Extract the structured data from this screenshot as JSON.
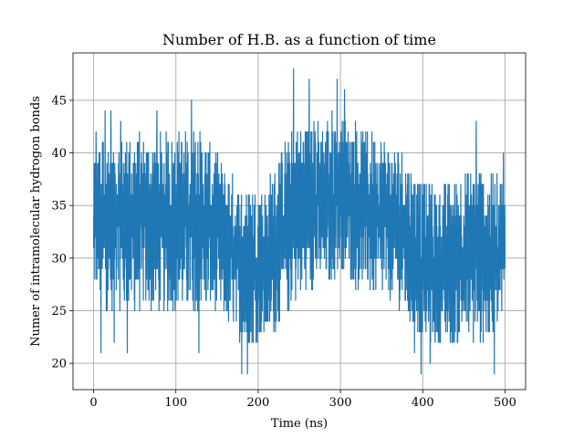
{
  "chart_data": {
    "type": "line",
    "title": "Number of H.B. as a function of time",
    "xlabel": "Time (ns)",
    "ylabel": "Numer of intramolecular hydrogon bonds",
    "xlim": [
      -25,
      525
    ],
    "ylim": [
      17.5,
      49.5
    ],
    "xticks": [
      0,
      100,
      200,
      300,
      400,
      500
    ],
    "yticks": [
      20,
      25,
      30,
      35,
      40,
      45
    ],
    "grid": true,
    "color": "#1f77b4",
    "series": [
      {
        "x_range": [
          0,
          500
        ],
        "min": 19,
        "max": 48,
        "band_low": [
          [
            0,
            27
          ],
          [
            10,
            25
          ],
          [
            20,
            25
          ],
          [
            30,
            25
          ],
          [
            40,
            25
          ],
          [
            50,
            25
          ],
          [
            60,
            25
          ],
          [
            70,
            25
          ],
          [
            80,
            25
          ],
          [
            90,
            25
          ],
          [
            100,
            25
          ],
          [
            110,
            25
          ],
          [
            120,
            25
          ],
          [
            130,
            25
          ],
          [
            140,
            25
          ],
          [
            150,
            25
          ],
          [
            160,
            24
          ],
          [
            170,
            23
          ],
          [
            180,
            22
          ],
          [
            190,
            22
          ],
          [
            200,
            22
          ],
          [
            210,
            22
          ],
          [
            220,
            23
          ],
          [
            230,
            24
          ],
          [
            240,
            25
          ],
          [
            250,
            26
          ],
          [
            260,
            27
          ],
          [
            270,
            27
          ],
          [
            280,
            27
          ],
          [
            290,
            28
          ],
          [
            300,
            29
          ],
          [
            310,
            28
          ],
          [
            320,
            27
          ],
          [
            330,
            27
          ],
          [
            340,
            26
          ],
          [
            350,
            26
          ],
          [
            360,
            26
          ],
          [
            370,
            25
          ],
          [
            380,
            24
          ],
          [
            390,
            23
          ],
          [
            400,
            22
          ],
          [
            410,
            22
          ],
          [
            420,
            22
          ],
          [
            430,
            22
          ],
          [
            440,
            22
          ],
          [
            450,
            22
          ],
          [
            460,
            22
          ],
          [
            470,
            22
          ],
          [
            480,
            22
          ],
          [
            490,
            23
          ],
          [
            500,
            24
          ]
        ],
        "band_high": [
          [
            0,
            39
          ],
          [
            10,
            42
          ],
          [
            20,
            42
          ],
          [
            30,
            42
          ],
          [
            40,
            42
          ],
          [
            50,
            42
          ],
          [
            60,
            42
          ],
          [
            70,
            42
          ],
          [
            80,
            42
          ],
          [
            90,
            42
          ],
          [
            100,
            42
          ],
          [
            110,
            42
          ],
          [
            120,
            42
          ],
          [
            130,
            42
          ],
          [
            140,
            41
          ],
          [
            150,
            40
          ],
          [
            160,
            39
          ],
          [
            170,
            38
          ],
          [
            180,
            37
          ],
          [
            190,
            37
          ],
          [
            200,
            37
          ],
          [
            210,
            37
          ],
          [
            220,
            39
          ],
          [
            230,
            41
          ],
          [
            240,
            42
          ],
          [
            250,
            43
          ],
          [
            260,
            43
          ],
          [
            270,
            43
          ],
          [
            280,
            43
          ],
          [
            290,
            44
          ],
          [
            300,
            44
          ],
          [
            310,
            43
          ],
          [
            320,
            43
          ],
          [
            330,
            42
          ],
          [
            340,
            42
          ],
          [
            350,
            42
          ],
          [
            360,
            41
          ],
          [
            370,
            41
          ],
          [
            380,
            40
          ],
          [
            390,
            38
          ],
          [
            400,
            37
          ],
          [
            410,
            37
          ],
          [
            420,
            37
          ],
          [
            430,
            37
          ],
          [
            440,
            38
          ],
          [
            450,
            38
          ],
          [
            460,
            39
          ],
          [
            470,
            39
          ],
          [
            480,
            38
          ],
          [
            490,
            38
          ],
          [
            500,
            38
          ]
        ],
        "spikes": [
          [
            3,
            42
          ],
          [
            9,
            21
          ],
          [
            14,
            44
          ],
          [
            21,
            44
          ],
          [
            25,
            22
          ],
          [
            33,
            43
          ],
          [
            41,
            21
          ],
          [
            77,
            44
          ],
          [
            119,
            45
          ],
          [
            128,
            21
          ],
          [
            180,
            19
          ],
          [
            187,
            19
          ],
          [
            243,
            48
          ],
          [
            262,
            47
          ],
          [
            296,
            47
          ],
          [
            305,
            46
          ],
          [
            390,
            21
          ],
          [
            398,
            19
          ],
          [
            409,
            20
          ],
          [
            465,
            43
          ],
          [
            487,
            19
          ],
          [
            498,
            40
          ]
        ]
      }
    ]
  }
}
